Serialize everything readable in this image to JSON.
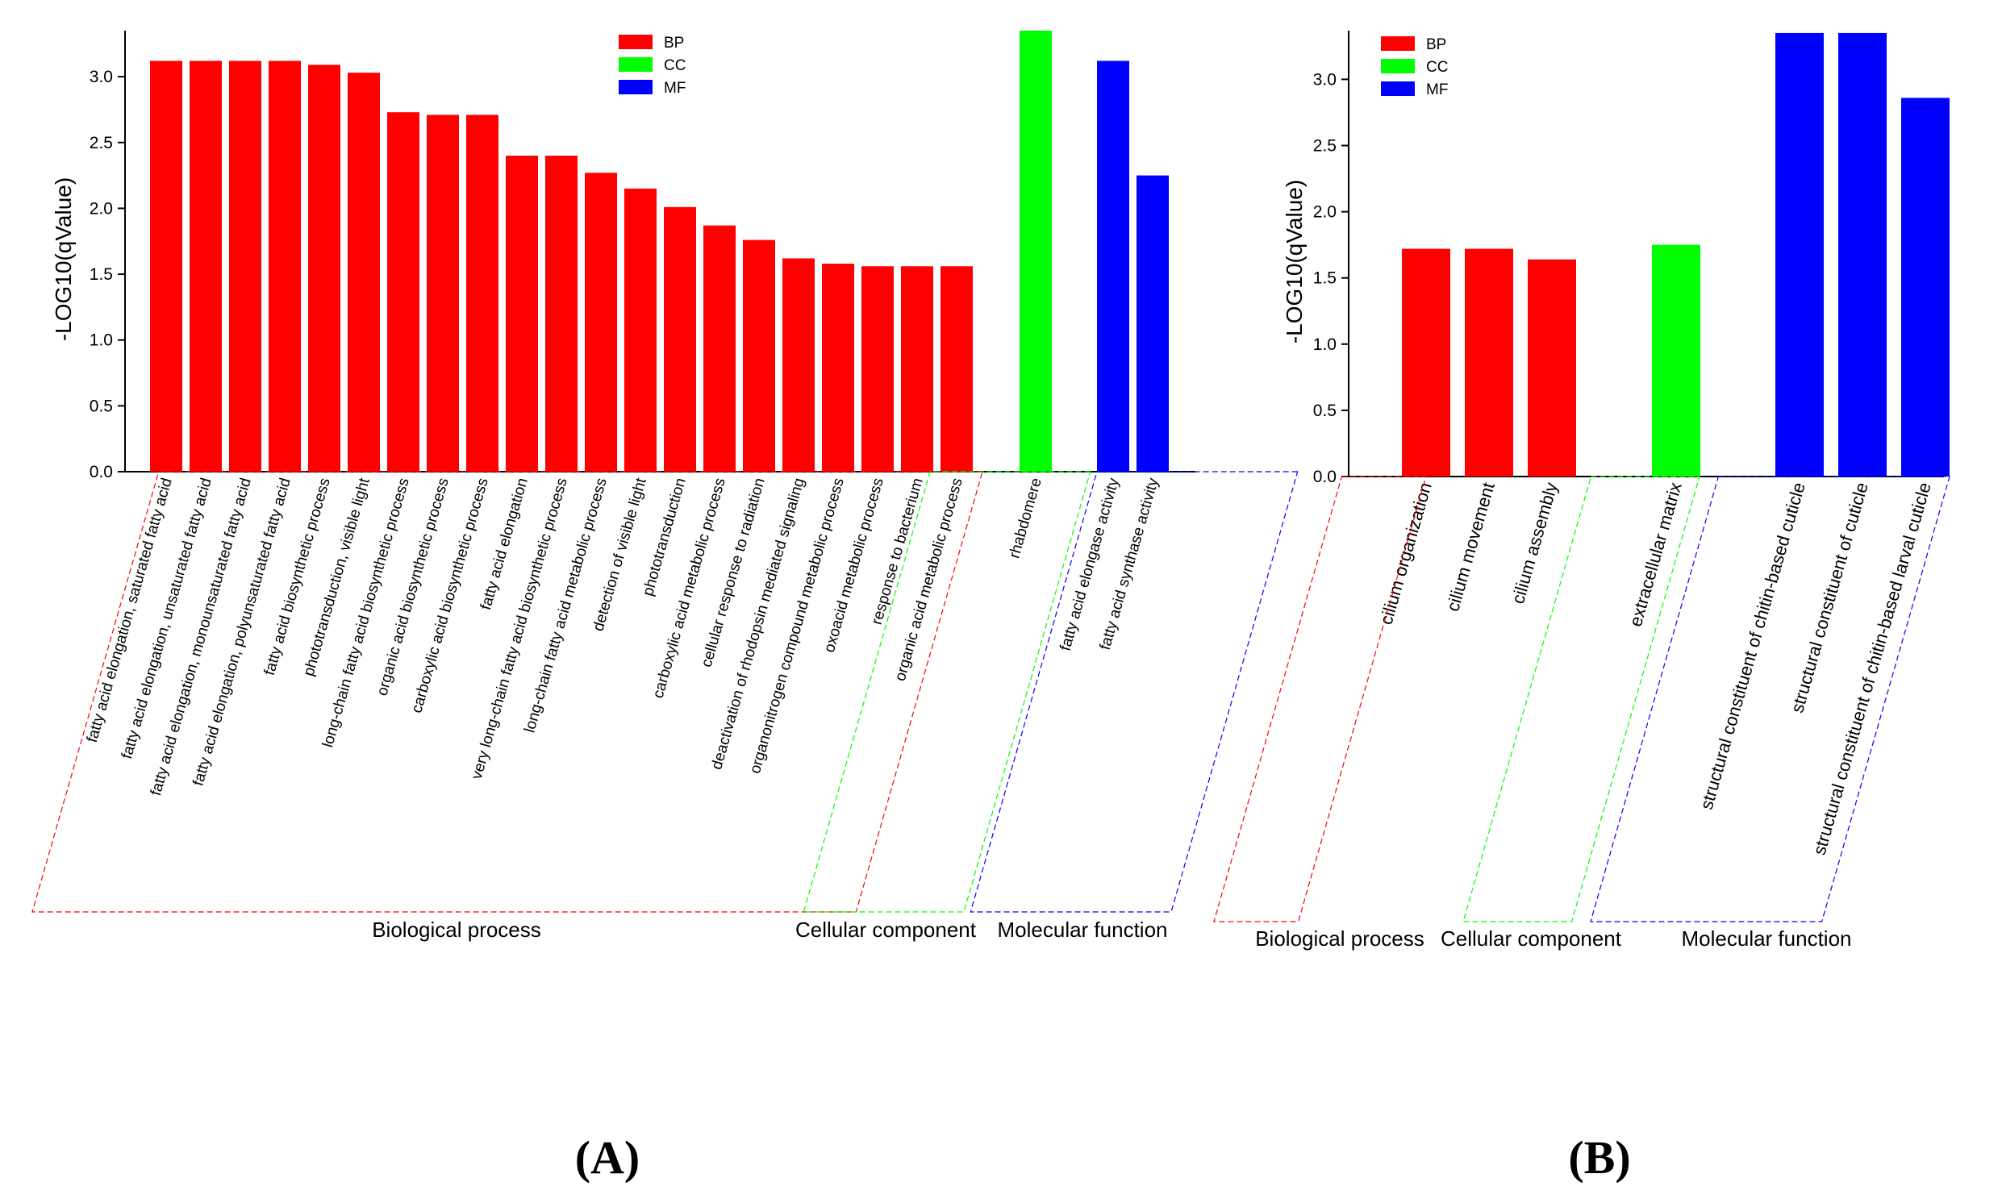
{
  "chart_data": [
    {
      "type": "bar",
      "panel_label": "(A)",
      "ylabel": "-LOG10(qValue)",
      "ylim": [
        0,
        3.35
      ],
      "yticks": [
        "0.0",
        "0.5",
        "1.0",
        "1.5",
        "2.0",
        "2.5",
        "3.0"
      ],
      "legend": [
        {
          "label": "BP",
          "color": "#ff0000"
        },
        {
          "label": "CC",
          "color": "#00ff00"
        },
        {
          "label": "MF",
          "color": "#0000ff"
        }
      ],
      "groups": [
        {
          "name": "Biological process",
          "key": "BP",
          "color": "#ff0000",
          "categories": [
            "fatty acid elongation, saturated fatty acid",
            "fatty acid elongation, unsaturated fatty acid",
            "fatty acid elongation, monounsaturated fatty acid",
            "fatty acid elongation, polyunsaturated fatty acid",
            "fatty acid biosynthetic process",
            "phototransduction, visible light",
            "long-chain fatty acid biosynthetic process",
            "organic acid biosynthetic process",
            "carboxylic acid biosynthetic process",
            "fatty acid elongation",
            "very long-chain fatty acid biosynthetic process",
            "long-chain fatty acid metabolic process",
            "detection of visible light",
            "phototransduction",
            "carboxylic acid metabolic process",
            "cellular response to radiation",
            "deactivation of rhodopsin mediated signaling",
            "organonitrogen compound metabolic process",
            "oxoacid metabolic process",
            "response to bacterium",
            "organic acid metabolic process"
          ],
          "values": [
            3.12,
            3.12,
            3.12,
            3.12,
            3.09,
            3.03,
            2.73,
            2.71,
            2.71,
            2.4,
            2.4,
            2.27,
            2.15,
            2.01,
            1.87,
            1.76,
            1.62,
            1.58,
            1.56,
            1.56,
            1.56
          ]
        },
        {
          "name": "Cellular component",
          "key": "CC",
          "color": "#00ff00",
          "categories": [
            "rhabdomere"
          ],
          "values": [
            3.4
          ]
        },
        {
          "name": "Molecular function",
          "key": "MF",
          "color": "#0000ff",
          "categories": [
            "fatty acid elongase activity",
            "fatty acid synthase activity"
          ],
          "values": [
            3.12,
            2.25
          ]
        }
      ]
    },
    {
      "type": "bar",
      "panel_label": "(B)",
      "ylabel": "-LOG10(qValue)",
      "ylim": [
        0,
        3.35
      ],
      "yticks": [
        "0.0",
        "0.5",
        "1.0",
        "1.5",
        "2.0",
        "2.5",
        "3.0"
      ],
      "legend": [
        {
          "label": "BP",
          "color": "#ff0000"
        },
        {
          "label": "CC",
          "color": "#00ff00"
        },
        {
          "label": "MF",
          "color": "#0000ff"
        }
      ],
      "groups": [
        {
          "name": "Biological process",
          "key": "BP",
          "color": "#ff0000",
          "categories": [
            "cilium organization",
            "cilium movement",
            "cilium assembly"
          ],
          "values": [
            1.72,
            1.72,
            1.64
          ]
        },
        {
          "name": "Cellular component",
          "key": "CC",
          "color": "#00ff00",
          "categories": [
            "extracellular matrix"
          ],
          "values": [
            1.75
          ]
        },
        {
          "name": "Molecular function",
          "key": "MF",
          "color": "#0000ff",
          "categories": [
            "structural constituent of chitin-based cuticle",
            "structural constituent of cuticle",
            "structural constituent of chitin-based larval cuticle"
          ],
          "values": [
            3.4,
            3.4,
            2.86
          ]
        }
      ]
    }
  ]
}
